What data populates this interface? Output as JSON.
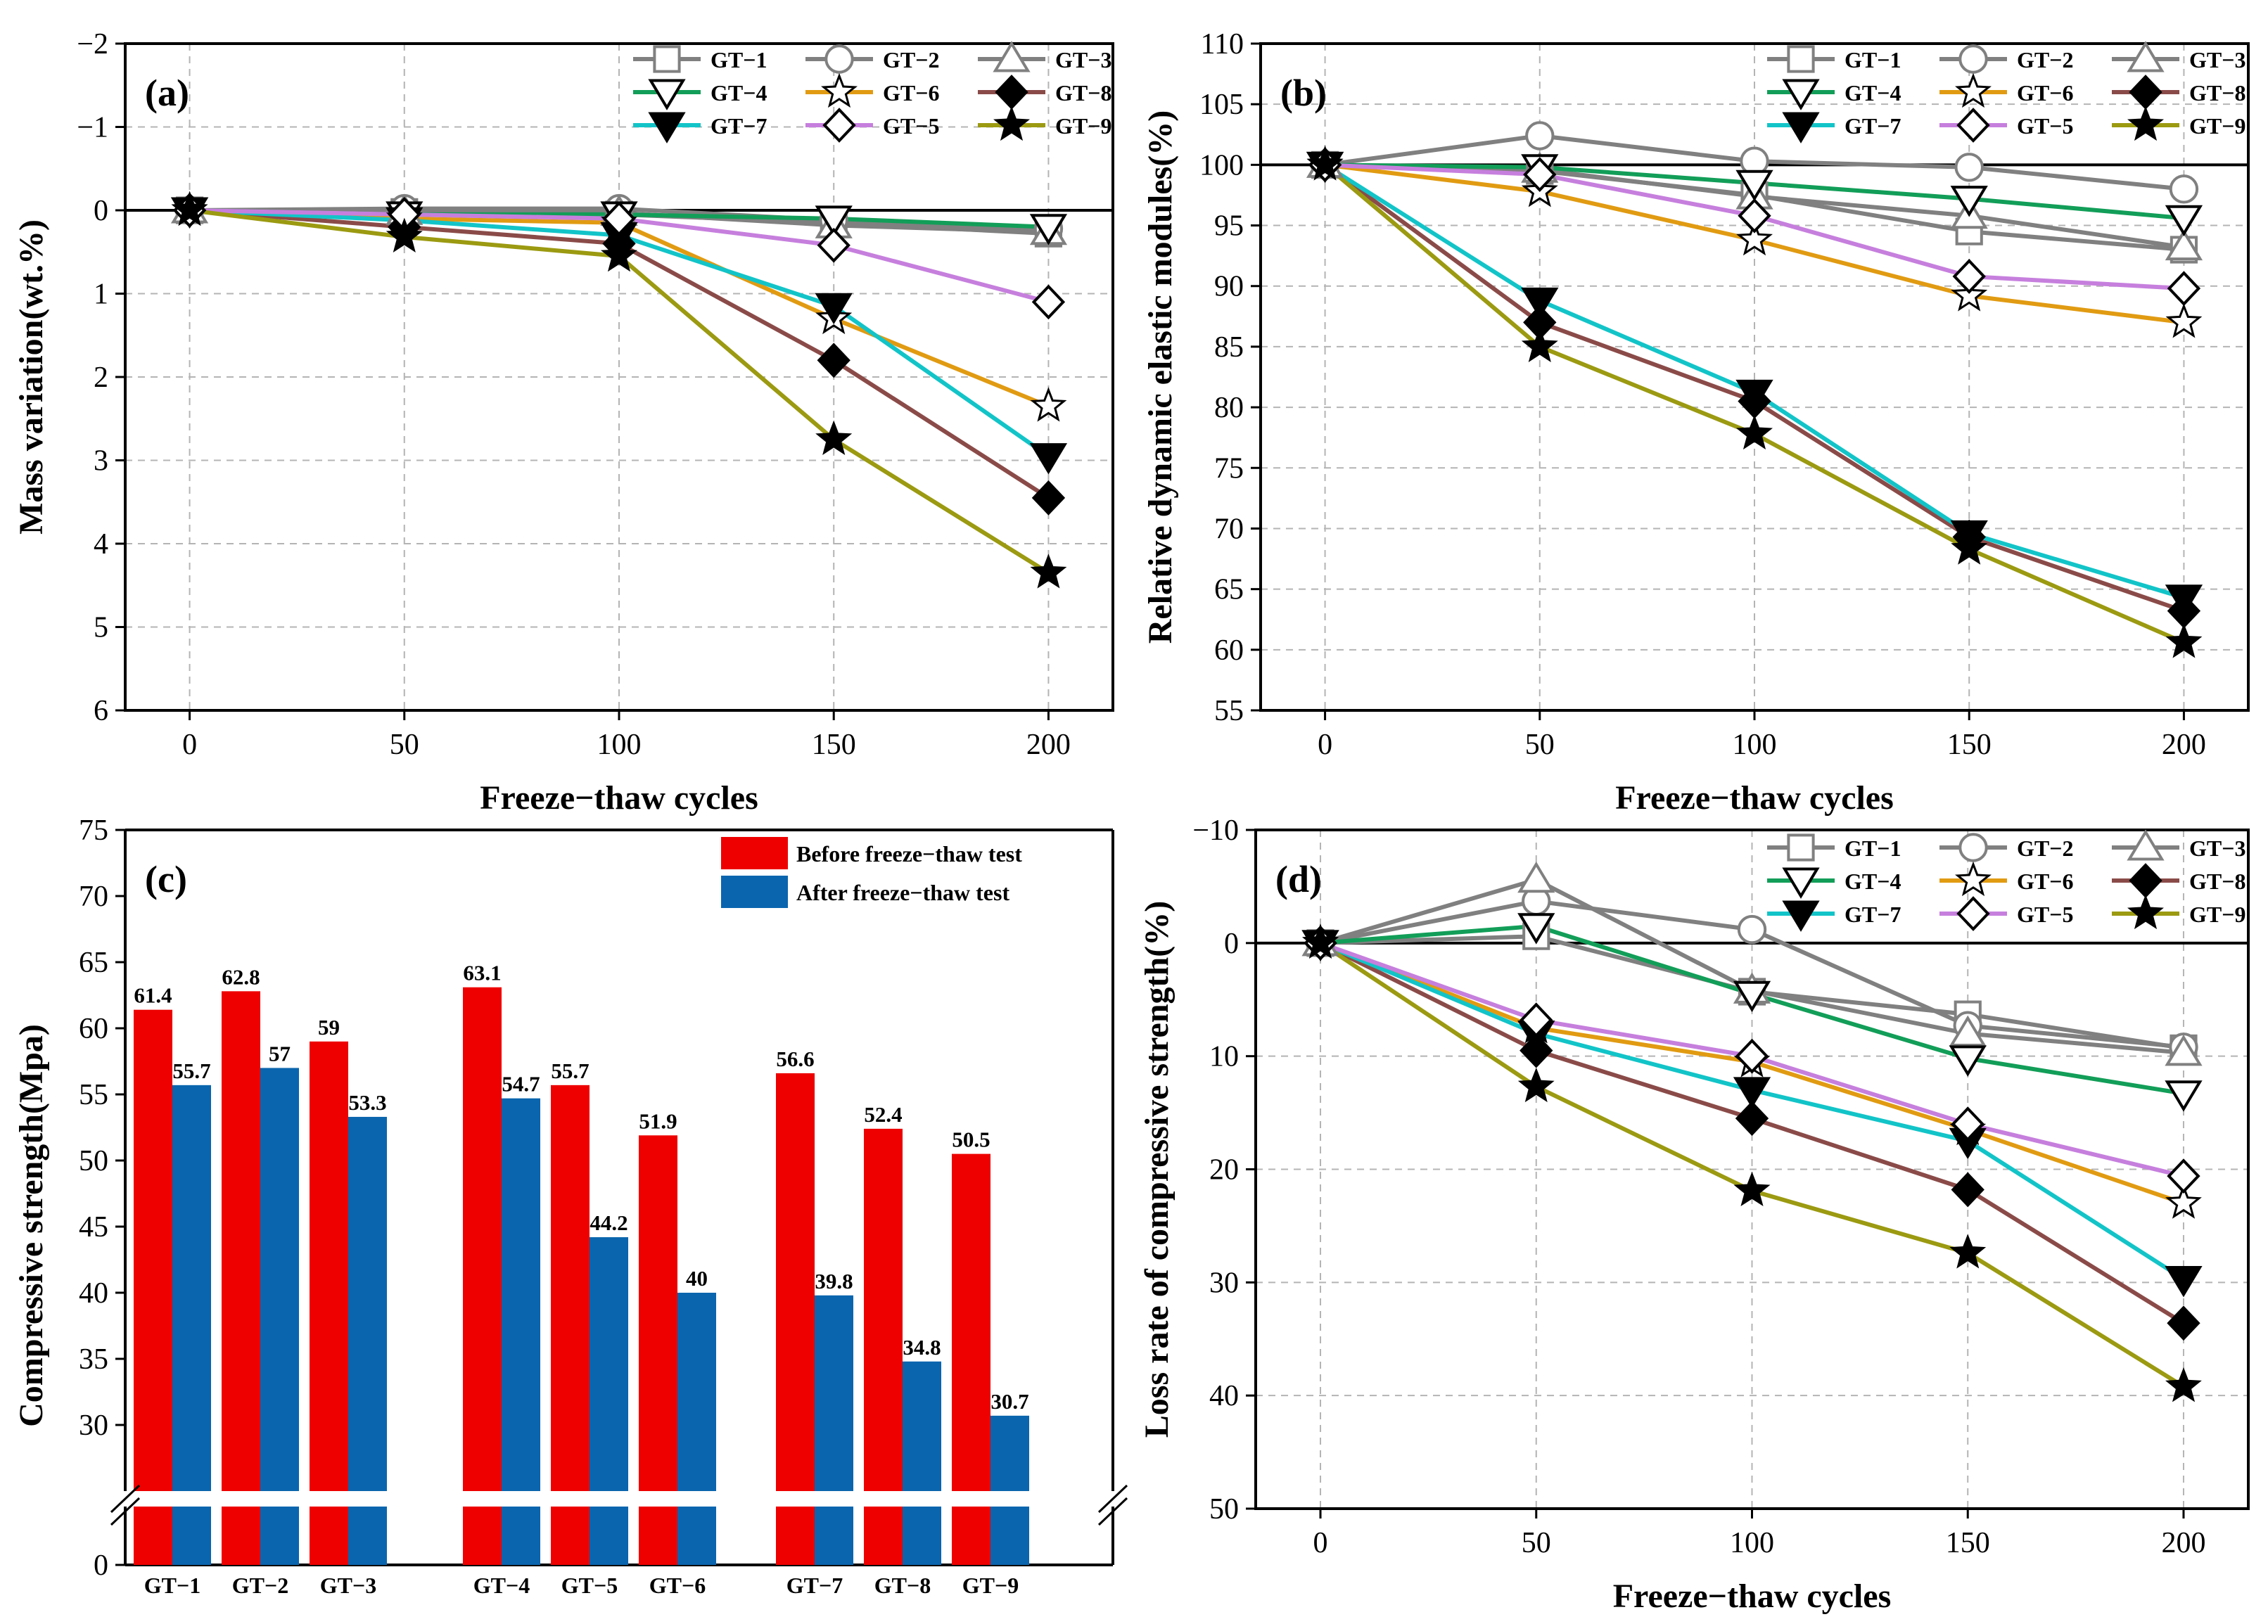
{
  "colors": {
    "GT-1": "#808080",
    "GT-2": "#808080",
    "GT-3": "#808080",
    "GT-4": "#129E58",
    "GT-6": "#E19B12",
    "GT-8": "#8A4B48",
    "GT-7": "#12C4C8",
    "GT-5": "#C67FDD",
    "GT-9": "#9B9A11",
    "before": "#EE0000",
    "after": "#0A65AE"
  },
  "markers": {
    "GT-1": "square-open",
    "GT-2": "circle-open",
    "GT-3": "triangle-up-open",
    "GT-4": "triangle-down-open",
    "GT-6": "star-open",
    "GT-8": "diamond-filled",
    "GT-7": "triangle-down-filled",
    "GT-5": "diamond-open",
    "GT-9": "star-filled"
  },
  "chart_data": [
    {
      "type": "line",
      "panel": "(a)",
      "xlabel": "Freeze−thaw cycles",
      "ylabel": "Mass variation(wt.%)",
      "x": [
        0,
        50,
        100,
        150,
        200
      ],
      "xticks": [
        "0",
        "50",
        "100",
        "150",
        "200"
      ],
      "ylim": [
        6,
        -2
      ],
      "yticks": [
        "−2",
        "−1",
        "0",
        "1",
        "2",
        "3",
        "4",
        "5",
        "6"
      ],
      "reference_line": 0,
      "legend_order": [
        "GT-1",
        "GT-2",
        "GT-3",
        "GT-4",
        "GT-6",
        "GT-8",
        "GT-7",
        "GT-5",
        "GT-9"
      ],
      "legend_labels": [
        "GT−1",
        "GT−2",
        "GT−3",
        "GT−4",
        "GT−6",
        "GT−8",
        "GT−7",
        "GT−5",
        "GT−9"
      ],
      "series": [
        {
          "name": "GT-1",
          "values": [
            0,
            0.02,
            0.05,
            0.15,
            0.28
          ]
        },
        {
          "name": "GT-2",
          "values": [
            0,
            -0.02,
            -0.02,
            0.12,
            0.22
          ]
        },
        {
          "name": "GT-3",
          "values": [
            0,
            0.02,
            0.03,
            0.18,
            0.26
          ]
        },
        {
          "name": "GT-4",
          "values": [
            0,
            0.05,
            0.05,
            0.1,
            0.2
          ]
        },
        {
          "name": "GT-6",
          "values": [
            0,
            0.1,
            0.15,
            1.3,
            2.35
          ]
        },
        {
          "name": "GT-8",
          "values": [
            0,
            0.2,
            0.4,
            1.8,
            3.45
          ]
        },
        {
          "name": "GT-7",
          "values": [
            0,
            0.12,
            0.3,
            1.15,
            2.95
          ]
        },
        {
          "name": "GT-5",
          "values": [
            0,
            0.05,
            0.1,
            0.42,
            1.1
          ]
        },
        {
          "name": "GT-9",
          "values": [
            0,
            0.32,
            0.55,
            2.75,
            4.35
          ]
        }
      ]
    },
    {
      "type": "line",
      "panel": "(b)",
      "xlabel": "Freeze−thaw cycles",
      "ylabel": "Relative dynamic elastic modules(%)",
      "x": [
        0,
        50,
        100,
        150,
        200
      ],
      "xticks": [
        "0",
        "50",
        "100",
        "150",
        "200"
      ],
      "ylim": [
        55,
        110
      ],
      "yticks": [
        "55",
        "60",
        "65",
        "70",
        "75",
        "80",
        "85",
        "90",
        "95",
        "100",
        "105",
        "110"
      ],
      "reference_line": 100,
      "legend_order": [
        "GT-1",
        "GT-2",
        "GT-3",
        "GT-4",
        "GT-6",
        "GT-8",
        "GT-7",
        "GT-5",
        "GT-9"
      ],
      "legend_labels": [
        "GT−1",
        "GT−2",
        "GT−3",
        "GT−4",
        "GT−6",
        "GT−8",
        "GT−7",
        "GT−5",
        "GT−9"
      ],
      "series": [
        {
          "name": "GT-1",
          "values": [
            100,
            99.5,
            97.5,
            94.5,
            93
          ]
        },
        {
          "name": "GT-2",
          "values": [
            100,
            102.4,
            100.3,
            99.8,
            98
          ]
        },
        {
          "name": "GT-3",
          "values": [
            100,
            99.6,
            97.4,
            95.8,
            93.2
          ]
        },
        {
          "name": "GT-4",
          "values": [
            100,
            99.8,
            98.5,
            97.2,
            95.6
          ]
        },
        {
          "name": "GT-6",
          "values": [
            100,
            97.8,
            93.8,
            89.2,
            87
          ]
        },
        {
          "name": "GT-8",
          "values": [
            100,
            87,
            80.5,
            69.3,
            63.2
          ]
        },
        {
          "name": "GT-7",
          "values": [
            100,
            88.8,
            81.2,
            69.6,
            64.3
          ]
        },
        {
          "name": "GT-5",
          "values": [
            100,
            99.2,
            95.8,
            90.8,
            89.8
          ]
        },
        {
          "name": "GT-9",
          "values": [
            100,
            85,
            77.8,
            68.3,
            60.6
          ]
        }
      ]
    },
    {
      "type": "bar",
      "panel": "(c)",
      "xlabel": "",
      "ylabel": "Compressive strength(Mpa)",
      "categories": [
        "GT−1",
        "GT−2",
        "GT−3",
        "GT−4",
        "GT−5",
        "GT−6",
        "GT−7",
        "GT−8",
        "GT−9"
      ],
      "ylim": [
        25,
        75
      ],
      "axis_break": true,
      "yticks": [
        "0",
        "30",
        "35",
        "40",
        "45",
        "50",
        "55",
        "60",
        "65",
        "70",
        "75"
      ],
      "series": [
        {
          "name": "Before freeze−thaw test",
          "values": [
            61.4,
            62.8,
            59,
            63.1,
            55.7,
            51.9,
            56.6,
            52.4,
            50.5
          ],
          "labels": [
            "61.4",
            "62.8",
            "59",
            "63.1",
            "55.7",
            "51.9",
            "56.6",
            "52.4",
            "50.5"
          ]
        },
        {
          "name": "After freeze−thaw test",
          "values": [
            55.7,
            57,
            53.3,
            54.7,
            44.2,
            40,
            39.8,
            34.8,
            30.7
          ],
          "labels": [
            "55.7",
            "57",
            "53.3",
            "54.7",
            "44.2",
            "40",
            "39.8",
            "34.8",
            "30.7"
          ]
        }
      ]
    },
    {
      "type": "line",
      "panel": "(d)",
      "xlabel": "Freeze−thaw cycles",
      "ylabel": "Loss rate of compressive strength(%)",
      "x": [
        0,
        50,
        100,
        150,
        200
      ],
      "xticks": [
        "0",
        "50",
        "100",
        "150",
        "200"
      ],
      "ylim": [
        50,
        -10
      ],
      "yticks": [
        "−10",
        "0",
        "10",
        "20",
        "30",
        "40",
        "50"
      ],
      "reference_line": 0,
      "legend_order": [
        "GT-1",
        "GT-2",
        "GT-3",
        "GT-4",
        "GT-6",
        "GT-8",
        "GT-7",
        "GT-5",
        "GT-9"
      ],
      "legend_labels": [
        "GT−1",
        "GT−2",
        "GT−3",
        "GT−4",
        "GT−6",
        "GT−8",
        "GT−7",
        "GT−5",
        "GT−9"
      ],
      "series": [
        {
          "name": "GT-1",
          "values": [
            0,
            -0.6,
            4.3,
            6.3,
            9.3
          ]
        },
        {
          "name": "GT-2",
          "values": [
            0,
            -3.7,
            -1.2,
            7.3,
            9.2
          ]
        },
        {
          "name": "GT-3",
          "values": [
            0,
            -5.6,
            4.2,
            8.0,
            9.7
          ]
        },
        {
          "name": "GT-4",
          "values": [
            0,
            -1.5,
            4.5,
            10.2,
            13.3
          ]
        },
        {
          "name": "GT-6",
          "values": [
            0,
            7.5,
            10.5,
            16.5,
            23.0
          ]
        },
        {
          "name": "GT-8",
          "values": [
            0,
            9.5,
            15.5,
            21.8,
            33.6
          ]
        },
        {
          "name": "GT-7",
          "values": [
            0,
            8.0,
            13.0,
            17.5,
            29.7
          ]
        },
        {
          "name": "GT-5",
          "values": [
            0,
            6.8,
            10.0,
            16.0,
            20.6
          ]
        },
        {
          "name": "GT-9",
          "values": [
            0,
            12.7,
            21.9,
            27.4,
            39.2
          ]
        }
      ]
    }
  ]
}
